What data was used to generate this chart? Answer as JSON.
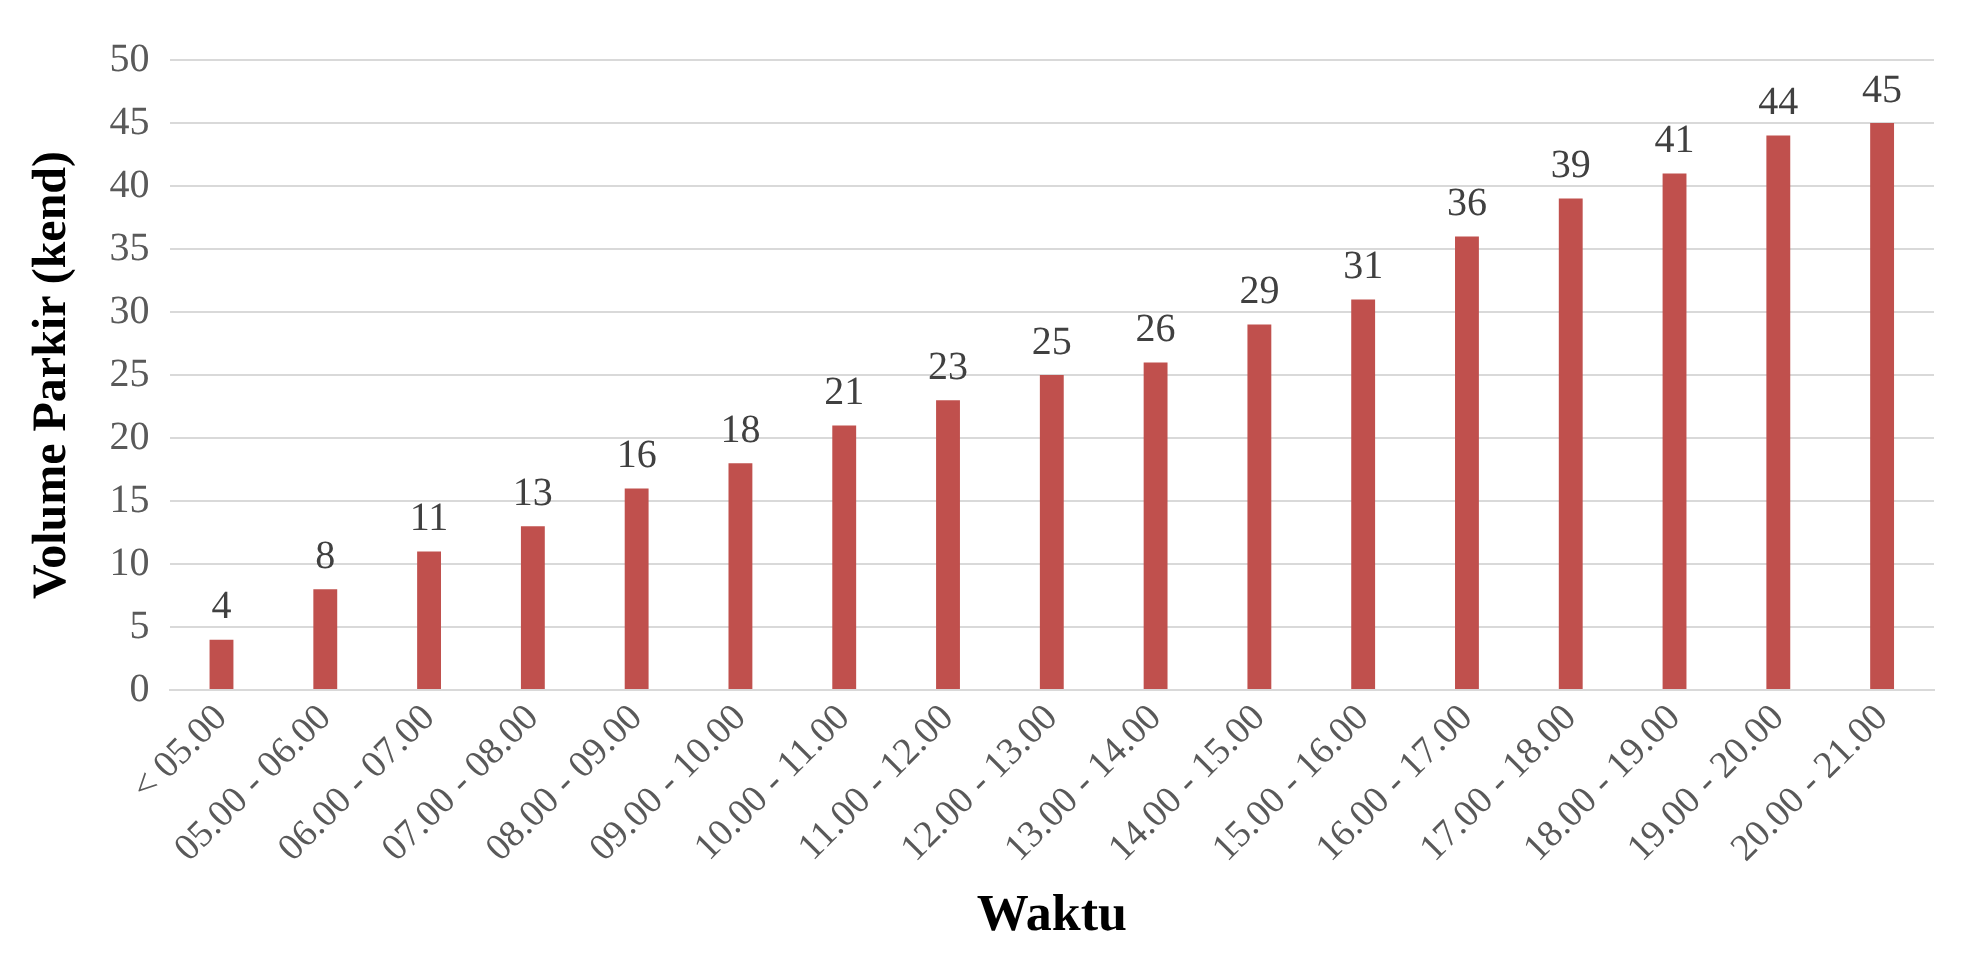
{
  "chart_data": {
    "type": "bar",
    "xlabel": "Waktu",
    "ylabel": "Volume Parkir (kend)",
    "categories": [
      "< 05.00",
      "05.00 - 06.00",
      "06.00 - 07.00",
      "07.00 - 08.00",
      "08.00 - 09.00",
      "09.00 - 10.00",
      "10.00 - 11.00",
      "11.00 - 12.00",
      "12.00 - 13.00",
      "13.00 - 14.00",
      "14.00 - 15.00",
      "15.00 - 16.00",
      "16.00 - 17.00",
      "17.00 - 18.00",
      "18.00 - 19.00",
      "19.00 - 20.00",
      "20.00 - 21.00"
    ],
    "values": [
      4,
      8,
      11,
      13,
      16,
      18,
      21,
      23,
      25,
      26,
      29,
      31,
      36,
      39,
      41,
      44,
      45
    ],
    "color": "#c0504d",
    "ylim": [
      0,
      50
    ],
    "yticks": [
      0,
      5,
      10,
      15,
      20,
      25,
      30,
      35,
      40,
      45,
      50
    ],
    "grid": "y",
    "legend": false,
    "data_labels": true
  }
}
